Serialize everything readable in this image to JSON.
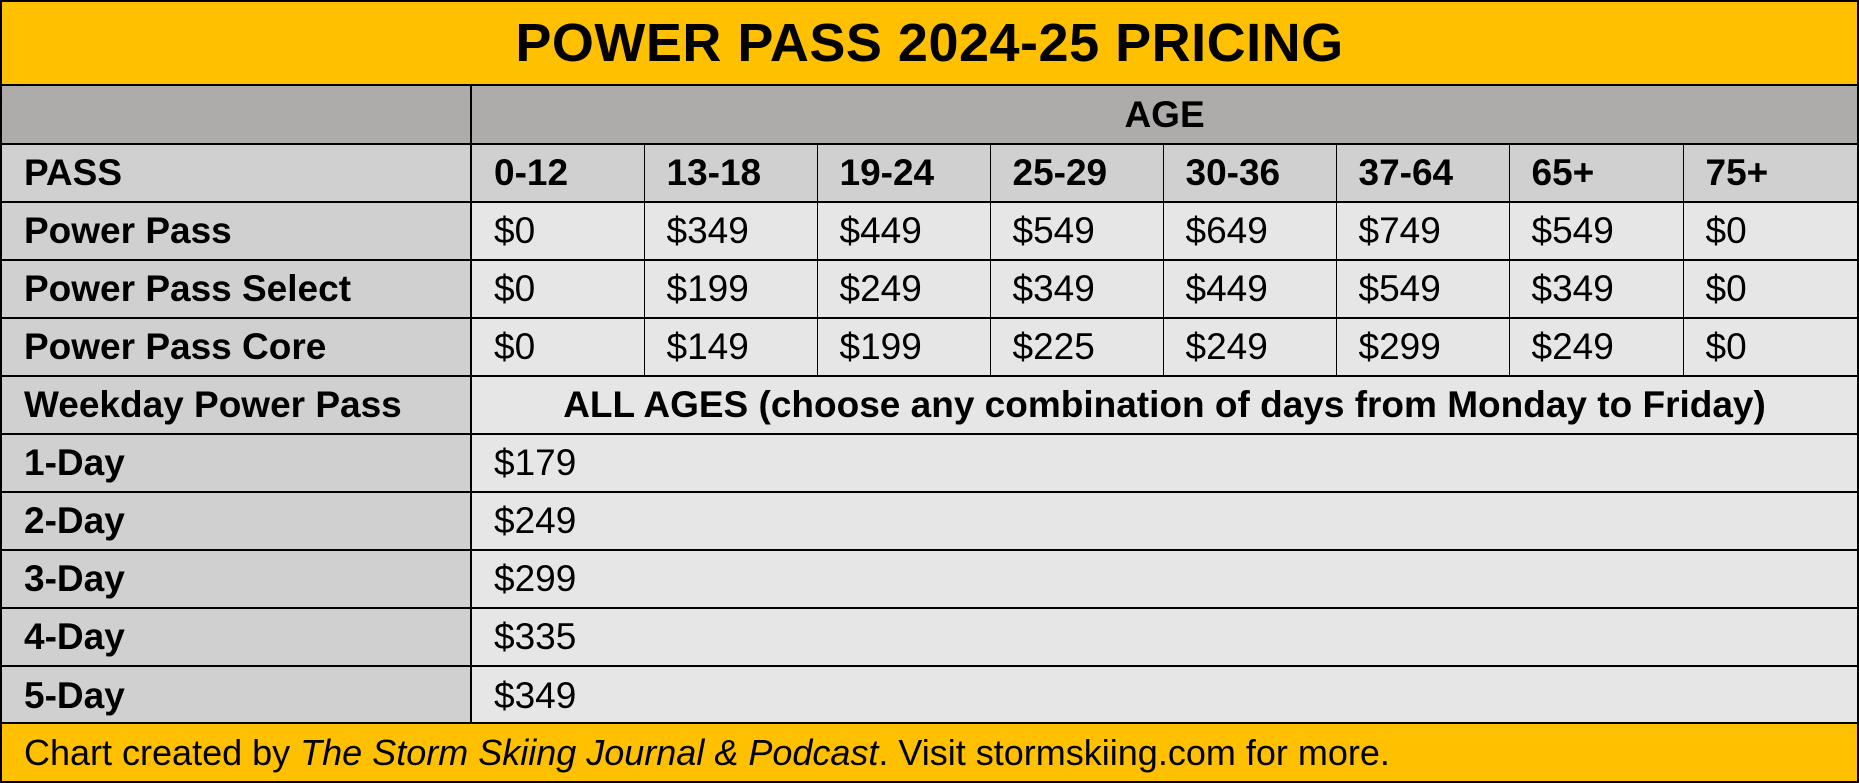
{
  "title": "POWER PASS 2024-25 PRICING",
  "age_header": "AGE",
  "pass_header": "PASS",
  "age_columns": [
    "0-12",
    "13-18",
    "19-24",
    "25-29",
    "30-36",
    "37-64",
    "65+",
    "75+"
  ],
  "pass_rows": [
    {
      "name": "Power Pass",
      "prices": [
        "$0",
        "$349",
        "$449",
        "$549",
        "$649",
        "$749",
        "$549",
        "$0"
      ]
    },
    {
      "name": "Power Pass Select",
      "prices": [
        "$0",
        "$199",
        "$249",
        "$349",
        "$449",
        "$549",
        "$349",
        "$0"
      ]
    },
    {
      "name": "Power Pass Core",
      "prices": [
        "$0",
        "$149",
        "$199",
        "$225",
        "$249",
        "$299",
        "$249",
        "$0"
      ]
    }
  ],
  "weekday": {
    "label": "Weekday Power Pass",
    "note": "ALL AGES (choose any combination of days from Monday to Friday)",
    "rows": [
      {
        "name": "1-Day",
        "price": "$179"
      },
      {
        "name": "2-Day",
        "price": "$249"
      },
      {
        "name": "3-Day",
        "price": "$299"
      },
      {
        "name": "4-Day",
        "price": "$335"
      },
      {
        "name": "5-Day",
        "price": "$349"
      }
    ]
  },
  "footer": {
    "prefix": "Chart created by ",
    "source": "The Storm Skiing Journal & Podcast",
    "suffix": ". Visit stormskiing.com for more."
  },
  "colors": {
    "title_bg": "#FFC000",
    "label_bg": "#D1D0D0",
    "value_bg": "#E7E6E6",
    "age_header_bg": "#AEABAB"
  }
}
